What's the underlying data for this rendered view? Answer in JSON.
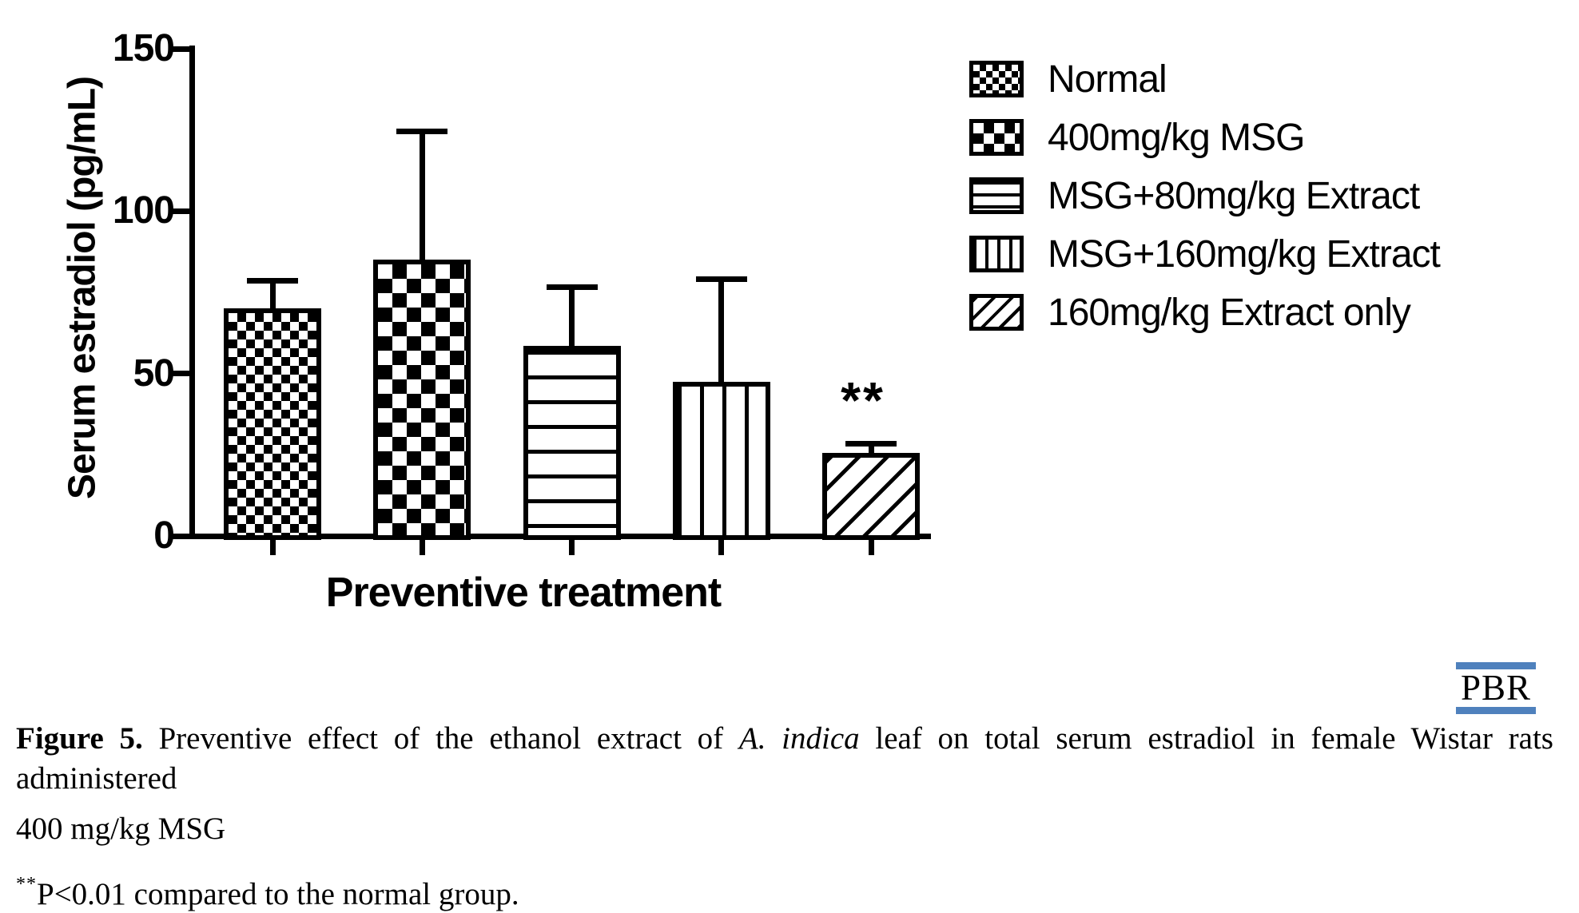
{
  "chart_data": {
    "type": "bar",
    "title": "",
    "xlabel": "Preventive treatment",
    "ylabel": "Serum estradiol (pg/mL)",
    "ylim": [
      0,
      150
    ],
    "yticks": [
      0,
      50,
      100,
      150
    ],
    "categories": [
      "Normal",
      "400mg/kg MSG",
      "MSG+80mg/kg Extract",
      "MSG+160mg/kg Extract",
      "160mg/kg Extract only"
    ],
    "values": [
      70,
      85,
      58.5,
      47.5,
      25.5
    ],
    "error_plus": [
      8.5,
      39.5,
      18,
      31.5,
      3
    ],
    "bar_patterns": [
      "checker-fine",
      "checker-coarse",
      "lines-horizontal",
      "lines-vertical",
      "hatch-diagonal"
    ],
    "annotations": [
      {
        "category_index": 4,
        "text": "**"
      }
    ],
    "legend_position": "right",
    "grid": false,
    "bar_fill": "#ffffff",
    "line_color": "#000000"
  },
  "logo": {
    "text": "PBR",
    "bar_color": "#4f81bd"
  },
  "caption": {
    "label": "Figure 5.",
    "pre_italic": " Preventive effect of the ethanol extract of ",
    "italic": "A. indica",
    "post_italic": " leaf on total serum estradiol in female Wistar rats administered",
    "line2": "400 mg/kg MSG"
  },
  "footnote": {
    "superscript": "**",
    "text": "P<0.01 compared to the normal group."
  }
}
